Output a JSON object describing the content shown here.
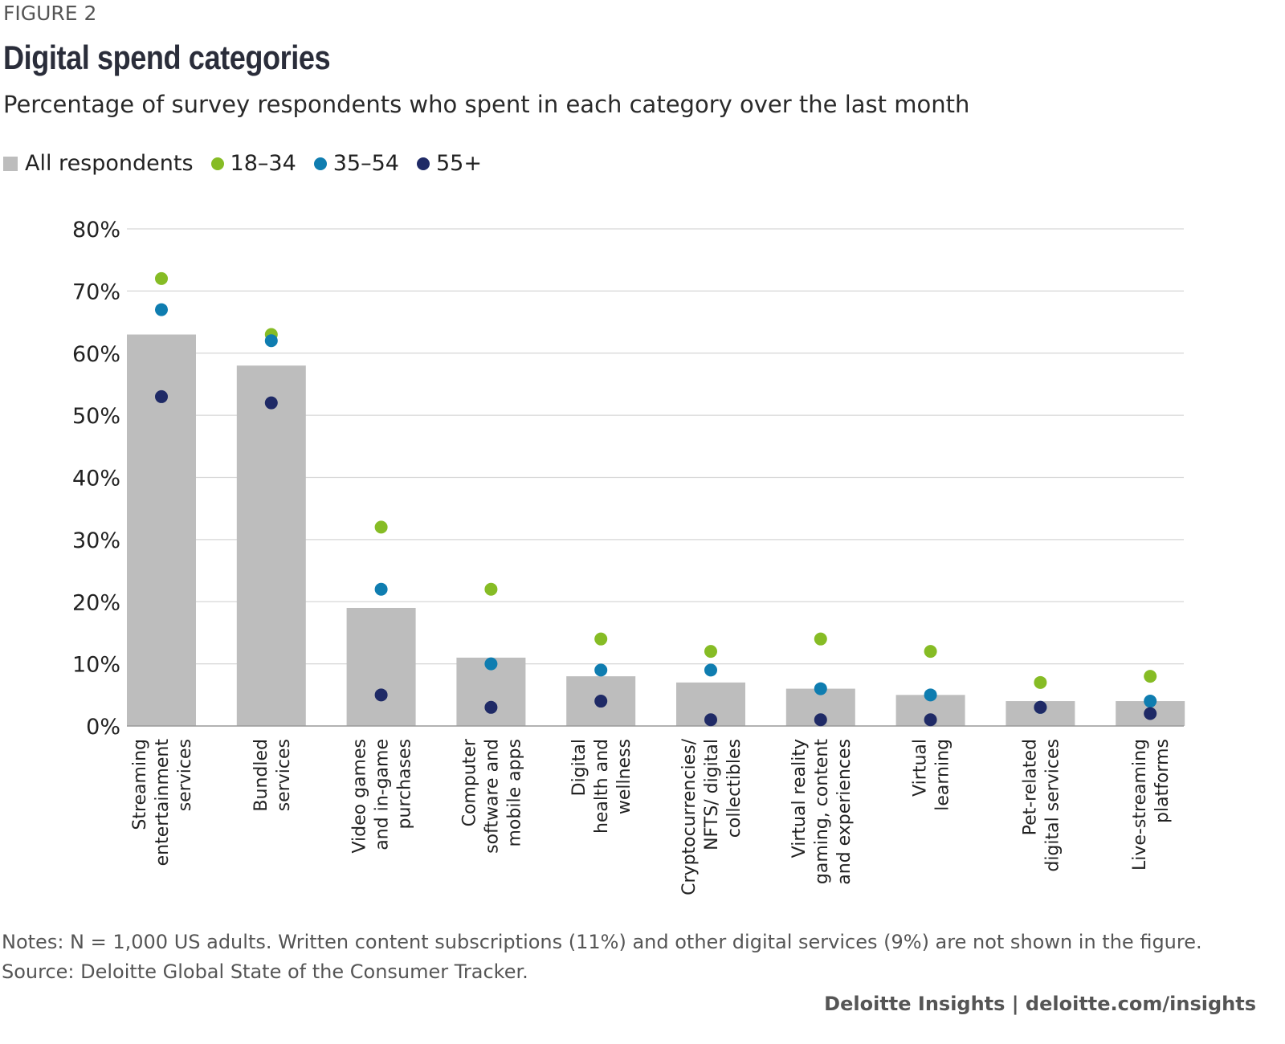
{
  "figure_label": "FIGURE 2",
  "footer": "Deloitte Insights | deloitte.com/insights",
  "notes": "Notes: N = 1,000 US adults. Written content subscriptions (11%) and other digital services (9%) are not shown in the figure.",
  "source": "Source: Deloitte Global State of the Consumer Tracker.",
  "chart_data": {
    "type": "bar",
    "title": "Digital spend categories",
    "subtitle": "Percentage of survey respondents who spent in each category over the last month",
    "xlabel": "",
    "ylabel": "",
    "ylim": [
      0,
      80
    ],
    "yticks": [
      "0%",
      "10%",
      "20%",
      "30%",
      "40%",
      "50%",
      "60%",
      "70%",
      "80%"
    ],
    "grid": true,
    "legend_position": "top-left",
    "categories": [
      [
        "Streaming",
        "entertainment",
        "services"
      ],
      [
        "Bundled",
        "services"
      ],
      [
        "Video games",
        "and in-game",
        "purchases"
      ],
      [
        "Computer",
        "software and",
        "mobile apps"
      ],
      [
        "Digital",
        "health and",
        "wellness"
      ],
      [
        "Cryptocurrencies/",
        "NFTS/ digital",
        "collectibles"
      ],
      [
        "Virtual reality",
        "gaming, content",
        "and experiences"
      ],
      [
        "Virtual",
        "learning"
      ],
      [
        "Pet-related",
        "digital services"
      ],
      [
        "Live-streaming",
        "platforms"
      ]
    ],
    "series": [
      {
        "name": "All respondents",
        "mark": "bar",
        "color": "#bdbdbd",
        "values": [
          63,
          58,
          19,
          11,
          8,
          7,
          6,
          5,
          4,
          4
        ]
      },
      {
        "name": "18–34",
        "mark": "dot",
        "color": "#86bc25",
        "values": [
          72,
          63,
          32,
          22,
          14,
          12,
          14,
          12,
          7,
          8
        ]
      },
      {
        "name": "35–54",
        "mark": "dot",
        "color": "#0f7db0",
        "values": [
          67,
          62,
          22,
          10,
          9,
          9,
          6,
          5,
          3,
          4
        ]
      },
      {
        "name": "55+",
        "mark": "dot",
        "color": "#1f2a66",
        "values": [
          53,
          52,
          5,
          3,
          4,
          1,
          1,
          1,
          3,
          2
        ]
      }
    ]
  }
}
